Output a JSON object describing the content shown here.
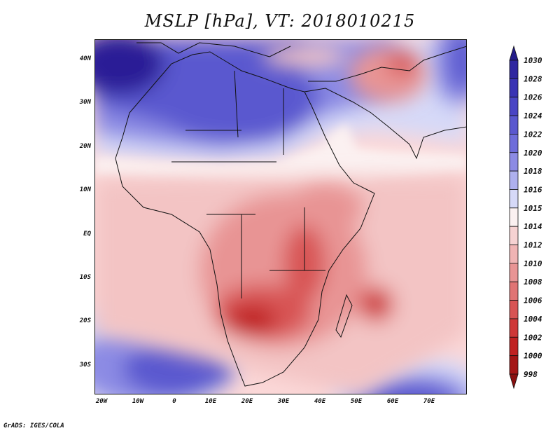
{
  "title": "MSLP [hPa], VT: 2018010215",
  "footer": "GrADS: IGES/COLA",
  "axes": {
    "y_ticks": [
      "40N",
      "30N",
      "20N",
      "10N",
      "EQ",
      "10S",
      "20S",
      "30S"
    ],
    "x_ticks": [
      "20W",
      "10W",
      "0",
      "10E",
      "20E",
      "30E",
      "40E",
      "50E",
      "60E",
      "70E"
    ]
  },
  "colorbar": {
    "levels": [
      "1030",
      "1028",
      "1026",
      "1024",
      "1022",
      "1020",
      "1018",
      "1016",
      "1015",
      "1014",
      "1012",
      "1010",
      "1008",
      "1006",
      "1004",
      "1002",
      "1000",
      "998"
    ],
    "colors": [
      "#241c8a",
      "#2f26a0",
      "#3a33b4",
      "#4a45c4",
      "#5a58cf",
      "#6e6dda",
      "#8c8be4",
      "#aeb0ee",
      "#d6d9f8",
      "#fbf1f1",
      "#f6d2d2",
      "#f0b4b4",
      "#e89494",
      "#e07474",
      "#d85454",
      "#cf3838",
      "#c02222",
      "#a41616",
      "#8a1010"
    ]
  },
  "map_colors": {
    "ocean_base": "#fbd8d8",
    "high_core": "#2a1e96",
    "high": "#5a58cf",
    "high_mid": "#8c8be4",
    "high_edge": "#d6d9f8",
    "neutral": "#fbf1f1",
    "low_edge": "#f3c4c4",
    "low_mid": "#e89494",
    "low_deep": "#d85454",
    "low_core": "#c02222"
  }
}
